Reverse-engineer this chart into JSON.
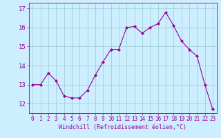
{
  "x": [
    0,
    1,
    2,
    3,
    4,
    5,
    6,
    7,
    8,
    9,
    10,
    11,
    12,
    13,
    14,
    15,
    16,
    17,
    18,
    19,
    20,
    21,
    22,
    23
  ],
  "y": [
    13.0,
    13.0,
    13.6,
    13.2,
    12.4,
    12.3,
    12.3,
    12.7,
    13.5,
    14.2,
    14.85,
    14.85,
    16.0,
    16.05,
    15.7,
    16.0,
    16.2,
    16.8,
    16.1,
    15.3,
    14.85,
    14.5,
    13.0,
    11.7
  ],
  "line_color": "#990099",
  "marker": "D",
  "marker_size": 2,
  "bg_color": "#cceeff",
  "grid_color": "#99cccc",
  "xlabel": "Windchill (Refroidissement éolien,°C)",
  "ylim": [
    11.5,
    17.3
  ],
  "xlim": [
    -0.5,
    23.5
  ],
  "yticks": [
    12,
    13,
    14,
    15,
    16,
    17
  ],
  "xticks": [
    0,
    1,
    2,
    3,
    4,
    5,
    6,
    7,
    8,
    9,
    10,
    11,
    12,
    13,
    14,
    15,
    16,
    17,
    18,
    19,
    20,
    21,
    22,
    23
  ],
  "tick_color": "#990099",
  "spine_color": "#990099",
  "xlabel_fontsize": 6.0,
  "ytick_fontsize": 6.5,
  "xtick_fontsize": 5.5
}
